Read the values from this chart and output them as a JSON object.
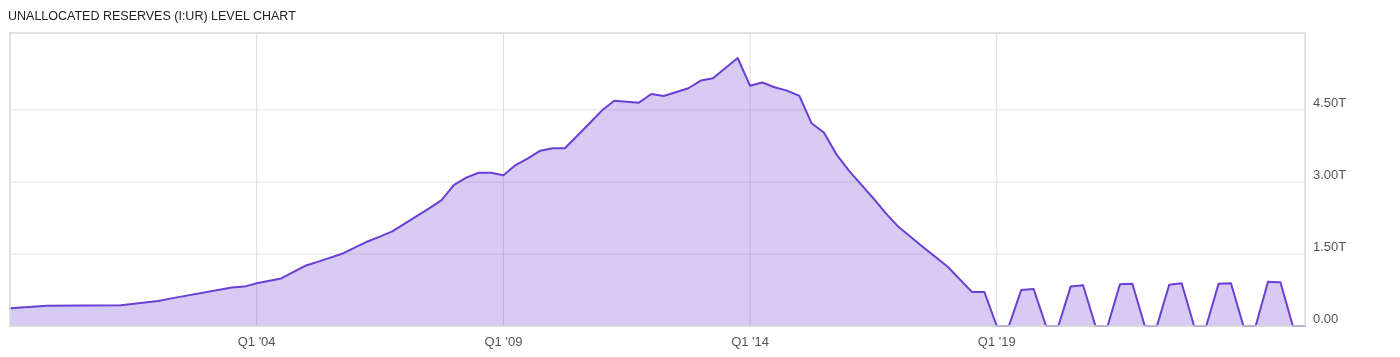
{
  "chart_data": {
    "type": "area",
    "title": "UNALLOCATED RESERVES (I:UR) LEVEL CHART",
    "x": [
      "1999-01",
      "1999-10",
      "2001-04",
      "2002-01",
      "2002-04",
      "2003-07",
      "2003-10",
      "2004-01",
      "2004-07",
      "2005-01",
      "2005-04",
      "2005-10",
      "2006-04",
      "2006-07",
      "2006-10",
      "2007-07",
      "2007-10",
      "2008-01",
      "2008-04",
      "2008-07",
      "2008-10",
      "2009-01",
      "2009-04",
      "2009-07",
      "2009-10",
      "2010-01",
      "2010-04",
      "2010-10",
      "2011-01",
      "2011-04",
      "2011-10",
      "2012-01",
      "2012-04",
      "2012-10",
      "2013-01",
      "2013-04",
      "2013-10",
      "2014-01",
      "2014-04",
      "2014-07",
      "2014-10",
      "2015-01",
      "2015-04",
      "2015-07",
      "2015-10",
      "2016-01",
      "2016-04",
      "2016-07",
      "2016-10",
      "2017-01",
      "2017-07",
      "2018-01",
      "2018-07",
      "2018-10",
      "2019-01",
      "2019-04",
      "2019-07",
      "2019-10",
      "2020-01",
      "2020-04",
      "2020-07",
      "2020-10",
      "2021-01",
      "2021-04",
      "2021-07",
      "2021-10",
      "2022-01",
      "2022-04",
      "2022-07",
      "2022-10",
      "2023-01",
      "2023-04",
      "2023-07",
      "2023-10",
      "2024-01",
      "2024-04",
      "2024-07",
      "2024-10",
      "2025-01",
      "2025-04"
    ],
    "series": [
      {
        "color": "#6a3fd4",
        "values": [
          0.37,
          0.42,
          0.43,
          0.52,
          0.57,
          0.8,
          0.82,
          0.89,
          0.99,
          1.26,
          1.34,
          1.51,
          1.76,
          1.86,
          1.97,
          2.45,
          2.62,
          2.94,
          3.09,
          3.19,
          3.19,
          3.14,
          3.35,
          3.49,
          3.65,
          3.7,
          3.7,
          4.22,
          4.49,
          4.69,
          4.65,
          4.83,
          4.79,
          4.95,
          5.11,
          5.16,
          5.58,
          5.0,
          5.07,
          4.97,
          4.9,
          4.79,
          4.22,
          4.03,
          3.58,
          3.24,
          2.95,
          2.66,
          2.35,
          2.07,
          1.65,
          1.24,
          0.71,
          0.71,
          0,
          0,
          0.75,
          0.77,
          0,
          0,
          0.82,
          0.85,
          0,
          0,
          0.87,
          0.88,
          0,
          0,
          0.86,
          0.89,
          0,
          0,
          0.88,
          0.89,
          0,
          0,
          0.92,
          0.91,
          0,
          0
        ]
      }
    ],
    "xlim": [
      "1999-01",
      "2025-04"
    ],
    "xticks": [
      {
        "value": "2004-01",
        "label": "Q1 '04"
      },
      {
        "value": "2009-01",
        "label": "Q1 '09"
      },
      {
        "value": "2014-01",
        "label": "Q1 '14"
      },
      {
        "value": "2019-01",
        "label": "Q1 '19"
      }
    ],
    "ylim": [
      0,
      6.1
    ],
    "yticks": [
      {
        "value": 0,
        "label": "0.00"
      },
      {
        "value": 1.5,
        "label": "1.50T"
      },
      {
        "value": 3,
        "label": "3.00T"
      },
      {
        "value": 4.5,
        "label": "4.50T"
      }
    ],
    "grid": true
  }
}
